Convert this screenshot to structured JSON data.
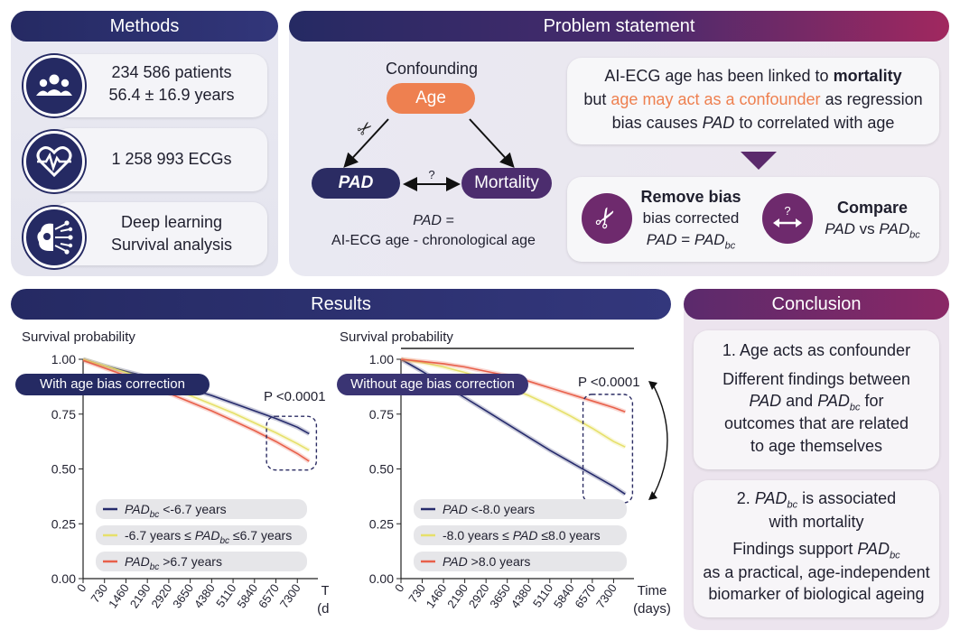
{
  "methods": {
    "title": "Methods",
    "patients_line1": "234 586 patients",
    "patients_line2": "56.4 ± 16.9 years",
    "ecgs": "1 258 993 ECGs",
    "dl_line1": "Deep learning",
    "dl_line2": "Survival analysis",
    "icons": [
      "people-icon",
      "heart-ecg-icon",
      "brain-network-icon"
    ]
  },
  "problem": {
    "title": "Problem statement",
    "confounding_label": "Confounding",
    "age_node": "Age",
    "pad_node": "PAD",
    "mortality_node": "Mortality",
    "question_mark": "?",
    "pad_def_line1": "PAD =",
    "pad_def_line2": "AI-ECG age - chronological age",
    "stmt_part1": "AI-ECG age has been linked to ",
    "stmt_part2": "mortality",
    "stmt_part3": "but ",
    "stmt_part4": "age may act as a confounder",
    "stmt_part5": " as regression",
    "stmt_part6": "bias causes ",
    "stmt_part7": "PAD",
    "stmt_part8": " to correlated with age",
    "remove_bias_title": "Remove bias",
    "remove_bias_line": "bias corrected",
    "remove_bias_eq_a": "PAD",
    "remove_bias_eq_b": " = ",
    "remove_bias_eq_c": "PAD",
    "sub_bc": "bc",
    "compare_title": "Compare",
    "compare_a": "PAD",
    "compare_b": " vs ",
    "compare_c": "PAD",
    "colors": {
      "age_node": "#ee8050",
      "dark_node": "#3a2a66",
      "accent_orange": "#ee8050",
      "purple": "#6e2a6d"
    }
  },
  "results": {
    "title": "Results",
    "left_pill": "With age bias correction",
    "right_pill": "Without age bias correction"
  },
  "chart_data": [
    {
      "type": "line",
      "title": "",
      "ylabel": "Survival probability",
      "xlabel_line1": "Time",
      "xlabel_line2": "(days)",
      "x_ticks": [
        0,
        730,
        1460,
        2190,
        2920,
        3650,
        4380,
        5110,
        5840,
        6570,
        7300
      ],
      "y_ticks": [
        "0.00",
        "0.25",
        "0.50",
        "0.75",
        "1.00"
      ],
      "xlim": [
        0,
        8000
      ],
      "ylim": [
        0,
        1.0
      ],
      "annotation": "P <0.0001",
      "legend_placement": "bottom-left",
      "legend": [
        {
          "pre": "",
          "italic": "PAD",
          "sub": "bc",
          "post": " <-6.7 years"
        },
        {
          "pre": "-6.7 years ≤ ",
          "italic": "PAD",
          "sub": "bc",
          "post": " ≤6.7 years"
        },
        {
          "pre": "",
          "italic": "PAD",
          "sub": "bc",
          "post": " >6.7 years"
        }
      ],
      "series": [
        {
          "color": "#262b6c",
          "x": [
            0,
            730,
            1460,
            2190,
            2920,
            3650,
            4380,
            5110,
            5840,
            6570,
            7300,
            7700
          ],
          "values": [
            1.0,
            0.97,
            0.945,
            0.92,
            0.895,
            0.865,
            0.835,
            0.8,
            0.765,
            0.73,
            0.69,
            0.66
          ]
        },
        {
          "color": "#e6e06a",
          "x": [
            0,
            730,
            1460,
            2190,
            2920,
            3650,
            4380,
            5110,
            5840,
            6570,
            7300,
            7700
          ],
          "values": [
            1.0,
            0.97,
            0.94,
            0.905,
            0.87,
            0.835,
            0.795,
            0.755,
            0.71,
            0.665,
            0.615,
            0.585
          ]
        },
        {
          "color": "#e8604a",
          "x": [
            0,
            730,
            1460,
            2190,
            2920,
            3650,
            4380,
            5110,
            5840,
            6570,
            7300,
            7700
          ],
          "values": [
            0.995,
            0.96,
            0.925,
            0.885,
            0.845,
            0.805,
            0.765,
            0.72,
            0.675,
            0.625,
            0.57,
            0.535
          ]
        }
      ]
    },
    {
      "type": "line",
      "title": "",
      "ylabel": "Survival probability",
      "xlabel_line1": "Time",
      "xlabel_line2": "(days)",
      "x_ticks": [
        0,
        730,
        1460,
        2190,
        2920,
        3650,
        4380,
        5110,
        5840,
        6570,
        7300
      ],
      "y_ticks": [
        "0.00",
        "0.25",
        "0.50",
        "0.75",
        "1.00"
      ],
      "xlim": [
        0,
        8000
      ],
      "ylim": [
        0,
        1.0
      ],
      "annotation": "P <0.0001",
      "legend_placement": "bottom-left",
      "legend": [
        {
          "pre": "",
          "italic": "PAD",
          "sub": "",
          "post": " <-8.0 years"
        },
        {
          "pre": "-8.0 years ≤ ",
          "italic": "PAD",
          "sub": "",
          "post": " ≤8.0 years"
        },
        {
          "pre": "",
          "italic": "PAD",
          "sub": "",
          "post": "  >8.0 years"
        }
      ],
      "series": [
        {
          "color": "#262b6c",
          "x": [
            0,
            730,
            1460,
            2190,
            2920,
            3650,
            4380,
            5110,
            5840,
            6570,
            7300,
            7700
          ],
          "values": [
            1.0,
            0.945,
            0.885,
            0.825,
            0.765,
            0.705,
            0.645,
            0.585,
            0.53,
            0.475,
            0.42,
            0.385
          ]
        },
        {
          "color": "#e6e06a",
          "x": [
            0,
            730,
            1460,
            2190,
            2920,
            3650,
            4380,
            5110,
            5840,
            6570,
            7300,
            7700
          ],
          "values": [
            1.0,
            0.985,
            0.965,
            0.94,
            0.91,
            0.875,
            0.835,
            0.79,
            0.74,
            0.685,
            0.625,
            0.6
          ]
        },
        {
          "color": "#e8604a",
          "x": [
            0,
            730,
            1460,
            2190,
            2920,
            3650,
            4380,
            5110,
            5840,
            6570,
            7300,
            7700
          ],
          "values": [
            1.0,
            0.99,
            0.98,
            0.965,
            0.945,
            0.925,
            0.9,
            0.87,
            0.84,
            0.81,
            0.78,
            0.76
          ]
        }
      ]
    }
  ],
  "conclusion": {
    "title": "Conclusion",
    "c1_title": "1. Age acts as confounder",
    "c1_line1": "Different findings between",
    "c1_line2a": "PAD",
    "c1_line2b": " and ",
    "c1_line2c": "PAD",
    "c1_line2d": " for",
    "c1_line3": "outcomes that are related",
    "c1_line4": "to age themselves",
    "c2_title_a": "2. ",
    "c2_title_b": "PAD",
    "c2_title_c": " is associated",
    "c2_title_line2": "with mortality",
    "c2_line1a": "Findings support ",
    "c2_line1b": "PAD",
    "c2_line2": "as a practical, age-independent",
    "c2_line3": "biomarker of biological ageing",
    "sub_bc": "bc"
  }
}
